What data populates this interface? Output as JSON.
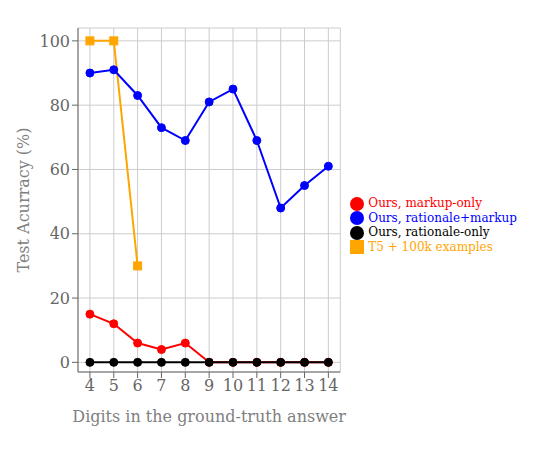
{
  "chart_data": {
    "type": "line",
    "x": [
      4,
      5,
      6,
      7,
      8,
      9,
      10,
      11,
      12,
      13,
      14
    ],
    "series": [
      {
        "name": "T5 + 100k examples",
        "color": "#FFA500",
        "marker": "square",
        "values": [
          100,
          100,
          30,
          null,
          null,
          null,
          null,
          null,
          null,
          null,
          null
        ]
      },
      {
        "name": "Ours, rationale+markup",
        "color": "#0000FF",
        "marker": "circle",
        "values": [
          90,
          91,
          83,
          73,
          69,
          81,
          85,
          69,
          48,
          55,
          61
        ]
      },
      {
        "name": "Ours, markup-only",
        "color": "#FF0000",
        "marker": "circle",
        "values": [
          15,
          12,
          6,
          4,
          6,
          0,
          0,
          0,
          0,
          0,
          0
        ]
      },
      {
        "name": "Ours, rationale-only",
        "color": "#000000",
        "marker": "circle",
        "values": [
          0,
          0,
          0,
          0,
          0,
          0,
          0,
          0,
          0,
          0,
          0
        ]
      }
    ],
    "xlabel": "Digits in the ground-truth answer",
    "ylabel": "Test Acurracy (%)",
    "xlim": [
      3.5,
      14.5
    ],
    "ylim": [
      -3,
      104
    ],
    "xticks": [
      4,
      5,
      6,
      7,
      8,
      9,
      10,
      11,
      12,
      13,
      14
    ],
    "yticks": [
      0,
      20,
      40,
      60,
      80,
      100
    ],
    "grid": true,
    "legend": "right"
  }
}
